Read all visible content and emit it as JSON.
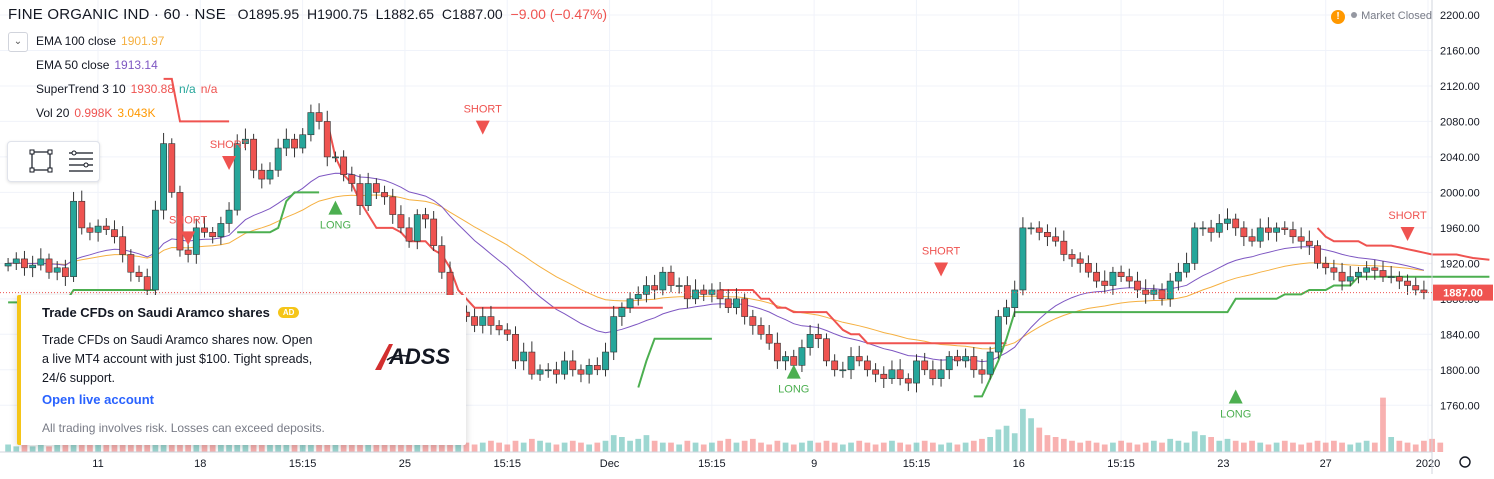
{
  "header": {
    "symbol": "FINE ORGANIC IND · 60 · NSE",
    "open_label": "O",
    "open": "1895.95",
    "high_label": "H",
    "high": "1900.75",
    "low_label": "L",
    "low": "1882.65",
    "close_label": "C",
    "close": "1887.00",
    "change": "−9.00 (−0.47%)"
  },
  "indicators": [
    {
      "name": "EMA 100 close",
      "values": [
        "1901.97"
      ],
      "color": "#f5b041"
    },
    {
      "name": "EMA 50 close",
      "values": [
        "1913.14"
      ],
      "color": "#7e57c2"
    },
    {
      "name": "SuperTrend 3 10",
      "values": [
        "1930.88",
        "n/a",
        "n/a"
      ],
      "colors": [
        "#ef5350",
        "#26a69a",
        "#ef5350"
      ]
    },
    {
      "name": "Vol 20",
      "values": [
        "0.998K",
        "3.043K"
      ],
      "colors": [
        "#ef5350",
        "#ff9800"
      ]
    }
  ],
  "market_status": {
    "icon": "exclamation-icon",
    "label": "Market Closed"
  },
  "toolbar": {
    "icons": [
      "rectangle-tool-icon",
      "settings-lines-icon"
    ]
  },
  "ad": {
    "title": "Trade CFDs on Saudi Aramco shares",
    "badge": "AD",
    "body": "Trade CFDs on Saudi Aramco shares now. Open a live MT4 account with just $100. Tight spreads, 24/6 support.",
    "cta": "Open live account",
    "disclaimer": "All trading involves risk. Losses can exceed deposits.",
    "logo_text": "ADSS"
  },
  "chart_data": {
    "type": "candlestick",
    "ylim": [
      1740,
      2200
    ],
    "yticks": [
      "2200.00",
      "2160.00",
      "2120.00",
      "2080.00",
      "2040.00",
      "2000.00",
      "1960.00",
      "1920.00",
      "1880.00",
      "1840.00",
      "1800.00",
      "1760.00"
    ],
    "xticks": [
      "11",
      "18",
      "15:15",
      "25",
      "15:15",
      "Dec",
      "15:15",
      "9",
      "15:15",
      "16",
      "15:15",
      "23",
      "27",
      "2020"
    ],
    "last_price": "1887.00",
    "colors": {
      "up": "#26a69a",
      "down": "#ef5350",
      "supertrend_up": "#4caf50",
      "supertrend_down": "#ef5350",
      "ema100": "#f5b041",
      "ema50": "#7e57c2"
    },
    "signals": [
      {
        "label": "SHORT",
        "price": 1965
      },
      {
        "label": "SHORT",
        "price": 2050
      },
      {
        "label": "LONG",
        "price": 1975
      },
      {
        "label": "SHORT",
        "price": 2090
      },
      {
        "label": "SHORT",
        "price": 1930
      },
      {
        "label": "LONG",
        "price": 1790
      },
      {
        "label": "LONG",
        "price": 1762
      },
      {
        "label": "SHORT",
        "price": 1970
      }
    ],
    "close_path": [
      1920,
      1925,
      1915,
      1918,
      1925,
      1910,
      1915,
      1905,
      1990,
      1960,
      1955,
      1962,
      1958,
      1950,
      1930,
      1910,
      1905,
      1890,
      1980,
      2055,
      2000,
      1935,
      1930,
      1960,
      1955,
      1950,
      1965,
      1980,
      2055,
      2060,
      2025,
      2015,
      2025,
      2050,
      2060,
      2050,
      2065,
      2090,
      2080,
      2040,
      2040,
      2020,
      2010,
      1985,
      2010,
      2000,
      1995,
      1975,
      1960,
      1945,
      1975,
      1970,
      1940,
      1910,
      1860,
      1865,
      1860,
      1850,
      1860,
      1850,
      1845,
      1840,
      1810,
      1820,
      1795,
      1800,
      1800,
      1795,
      1810,
      1800,
      1795,
      1805,
      1800,
      1820,
      1860,
      1870,
      1880,
      1885,
      1895,
      1890,
      1910,
      1895,
      1895,
      1880,
      1890,
      1885,
      1890,
      1880,
      1870,
      1880,
      1860,
      1850,
      1840,
      1830,
      1810,
      1815,
      1805,
      1825,
      1840,
      1835,
      1810,
      1800,
      1800,
      1815,
      1810,
      1800,
      1795,
      1790,
      1800,
      1790,
      1785,
      1810,
      1800,
      1790,
      1800,
      1815,
      1810,
      1815,
      1800,
      1795,
      1820,
      1860,
      1870,
      1890,
      1960,
      1960,
      1955,
      1950,
      1945,
      1930,
      1925,
      1920,
      1910,
      1900,
      1895,
      1910,
      1905,
      1900,
      1890,
      1885,
      1890,
      1880,
      1900,
      1910,
      1920,
      1960,
      1960,
      1955,
      1965,
      1970,
      1960,
      1950,
      1945,
      1960,
      1955,
      1960,
      1958,
      1950,
      1945,
      1940,
      1920,
      1915,
      1910,
      1900,
      1905,
      1910,
      1915,
      1912,
      1905,
      1905,
      1900,
      1895,
      1890,
      1887
    ],
    "volumes": [
      0.4,
      0.3,
      0.5,
      0.3,
      0.4,
      0.3,
      0.5,
      0.4,
      0.8,
      0.6,
      0.5,
      0.4,
      0.5,
      0.4,
      0.6,
      0.5,
      0.4,
      0.5,
      0.9,
      1.0,
      0.7,
      0.5,
      0.4,
      0.6,
      0.5,
      0.4,
      0.5,
      0.6,
      0.9,
      0.8,
      0.6,
      0.5,
      0.6,
      0.7,
      0.8,
      0.5,
      0.6,
      0.9,
      0.7,
      0.6,
      0.5,
      0.4,
      0.5,
      0.6,
      0.5,
      0.4,
      0.5,
      0.6,
      0.5,
      0.4,
      0.5,
      0.6,
      0.7,
      0.8,
      0.9,
      0.7,
      0.5,
      0.4,
      0.5,
      0.6,
      0.5,
      0.4,
      0.6,
      0.5,
      0.7,
      0.6,
      0.5,
      0.4,
      0.5,
      0.6,
      0.5,
      0.4,
      0.5,
      0.6,
      0.9,
      0.8,
      0.6,
      0.7,
      0.9,
      0.6,
      0.5,
      0.5,
      0.4,
      0.6,
      0.5,
      0.4,
      0.5,
      0.6,
      0.7,
      0.5,
      0.6,
      0.7,
      0.5,
      0.4,
      0.6,
      0.5,
      0.4,
      0.5,
      0.6,
      0.5,
      0.6,
      0.5,
      0.4,
      0.5,
      0.6,
      0.5,
      0.4,
      0.5,
      0.6,
      0.5,
      0.4,
      0.5,
      0.6,
      0.5,
      0.4,
      0.5,
      0.4,
      0.5,
      0.6,
      0.7,
      0.8,
      1.2,
      1.4,
      1.0,
      2.3,
      1.8,
      1.3,
      0.9,
      0.8,
      0.7,
      0.6,
      0.5,
      0.6,
      0.5,
      0.4,
      0.5,
      0.6,
      0.5,
      0.4,
      0.5,
      0.6,
      0.5,
      0.7,
      0.6,
      0.5,
      1.1,
      0.9,
      0.8,
      0.6,
      0.7,
      0.6,
      0.5,
      0.6,
      0.5,
      0.4,
      0.5,
      0.6,
      0.5,
      0.4,
      0.5,
      0.6,
      0.5,
      0.6,
      0.5,
      0.4,
      0.5,
      0.6,
      0.5,
      2.9,
      0.8,
      0.6,
      0.5,
      0.4,
      0.6,
      0.7,
      0.5
    ],
    "supertrend_segments": [
      {
        "dir": "up",
        "from": 0,
        "to": 18,
        "levels": [
          1876,
          1876,
          1876,
          1876,
          1876,
          1876,
          1876,
          1876,
          1890,
          1890,
          1890,
          1890,
          1890,
          1890,
          1890,
          1890,
          1890,
          1890,
          1890
        ]
      },
      {
        "dir": "down",
        "from": 19,
        "to": 27,
        "levels": [
          2128,
          2128,
          2080,
          2080,
          2080,
          2080,
          2080,
          2080,
          2080
        ]
      },
      {
        "dir": "up",
        "from": 28,
        "to": 38,
        "levels": [
          1955,
          1955,
          1955,
          1955,
          1955,
          1960,
          1990,
          2000,
          2000,
          2000,
          2000
        ]
      },
      {
        "dir": "down",
        "from": 39,
        "to": 80,
        "levels": [
          2080,
          2040,
          2020,
          2010,
          1990,
          1975,
          1960,
          1960,
          1960,
          1955,
          1945,
          1945,
          1945,
          1935,
          1930,
          1915,
          1890,
          1880,
          1870,
          1870,
          1870,
          1870,
          1870,
          1870,
          1870,
          1870,
          1870,
          1870,
          1870,
          1870,
          1870,
          1870,
          1870,
          1870,
          1870,
          1870,
          1870,
          1870,
          1870,
          1870,
          1870,
          1870
        ]
      },
      {
        "dir": "up",
        "from": 77,
        "to": 86,
        "levels": [
          1780,
          1810,
          1835,
          1835,
          1835,
          1835,
          1835,
          1835,
          1835,
          1835
        ]
      },
      {
        "dir": "down",
        "from": 87,
        "to": 122,
        "levels": [
          1890,
          1890,
          1890,
          1890,
          1890,
          1880,
          1880,
          1870,
          1870,
          1865,
          1865,
          1865,
          1865,
          1865,
          1855,
          1845,
          1840,
          1840,
          1830,
          1830,
          1830,
          1830,
          1830,
          1830,
          1830,
          1830,
          1830,
          1830,
          1830,
          1830,
          1830,
          1830,
          1830,
          1830,
          1830,
          1830
        ]
      },
      {
        "dir": "up",
        "from": 118,
        "to": 181,
        "levels": [
          1770,
          1770,
          1790,
          1810,
          1835,
          1865,
          1865,
          1865,
          1865,
          1865,
          1865,
          1865,
          1865,
          1865,
          1865,
          1865,
          1865,
          1865,
          1865,
          1865,
          1865,
          1865,
          1865,
          1865,
          1865,
          1865,
          1865,
          1865,
          1865,
          1865,
          1865,
          1865,
          1880,
          1880,
          1880,
          1880,
          1880,
          1880,
          1885,
          1885,
          1885,
          1890,
          1890,
          1890,
          1895,
          1895,
          1895,
          1905,
          1905,
          1905,
          1905,
          1905,
          1905,
          1905,
          1905,
          1905,
          1905,
          1905,
          1905,
          1905,
          1905,
          1905,
          1905,
          1905
        ]
      },
      {
        "dir": "down",
        "from": 160,
        "to": 181,
        "levels": [
          1960,
          1950,
          1945,
          1945,
          1945,
          1945,
          1940,
          1940,
          1940,
          1940,
          1938,
          1936,
          1934,
          1932,
          1930,
          1930,
          1930,
          1930,
          1928,
          1926,
          1925,
          1924
        ]
      }
    ]
  }
}
